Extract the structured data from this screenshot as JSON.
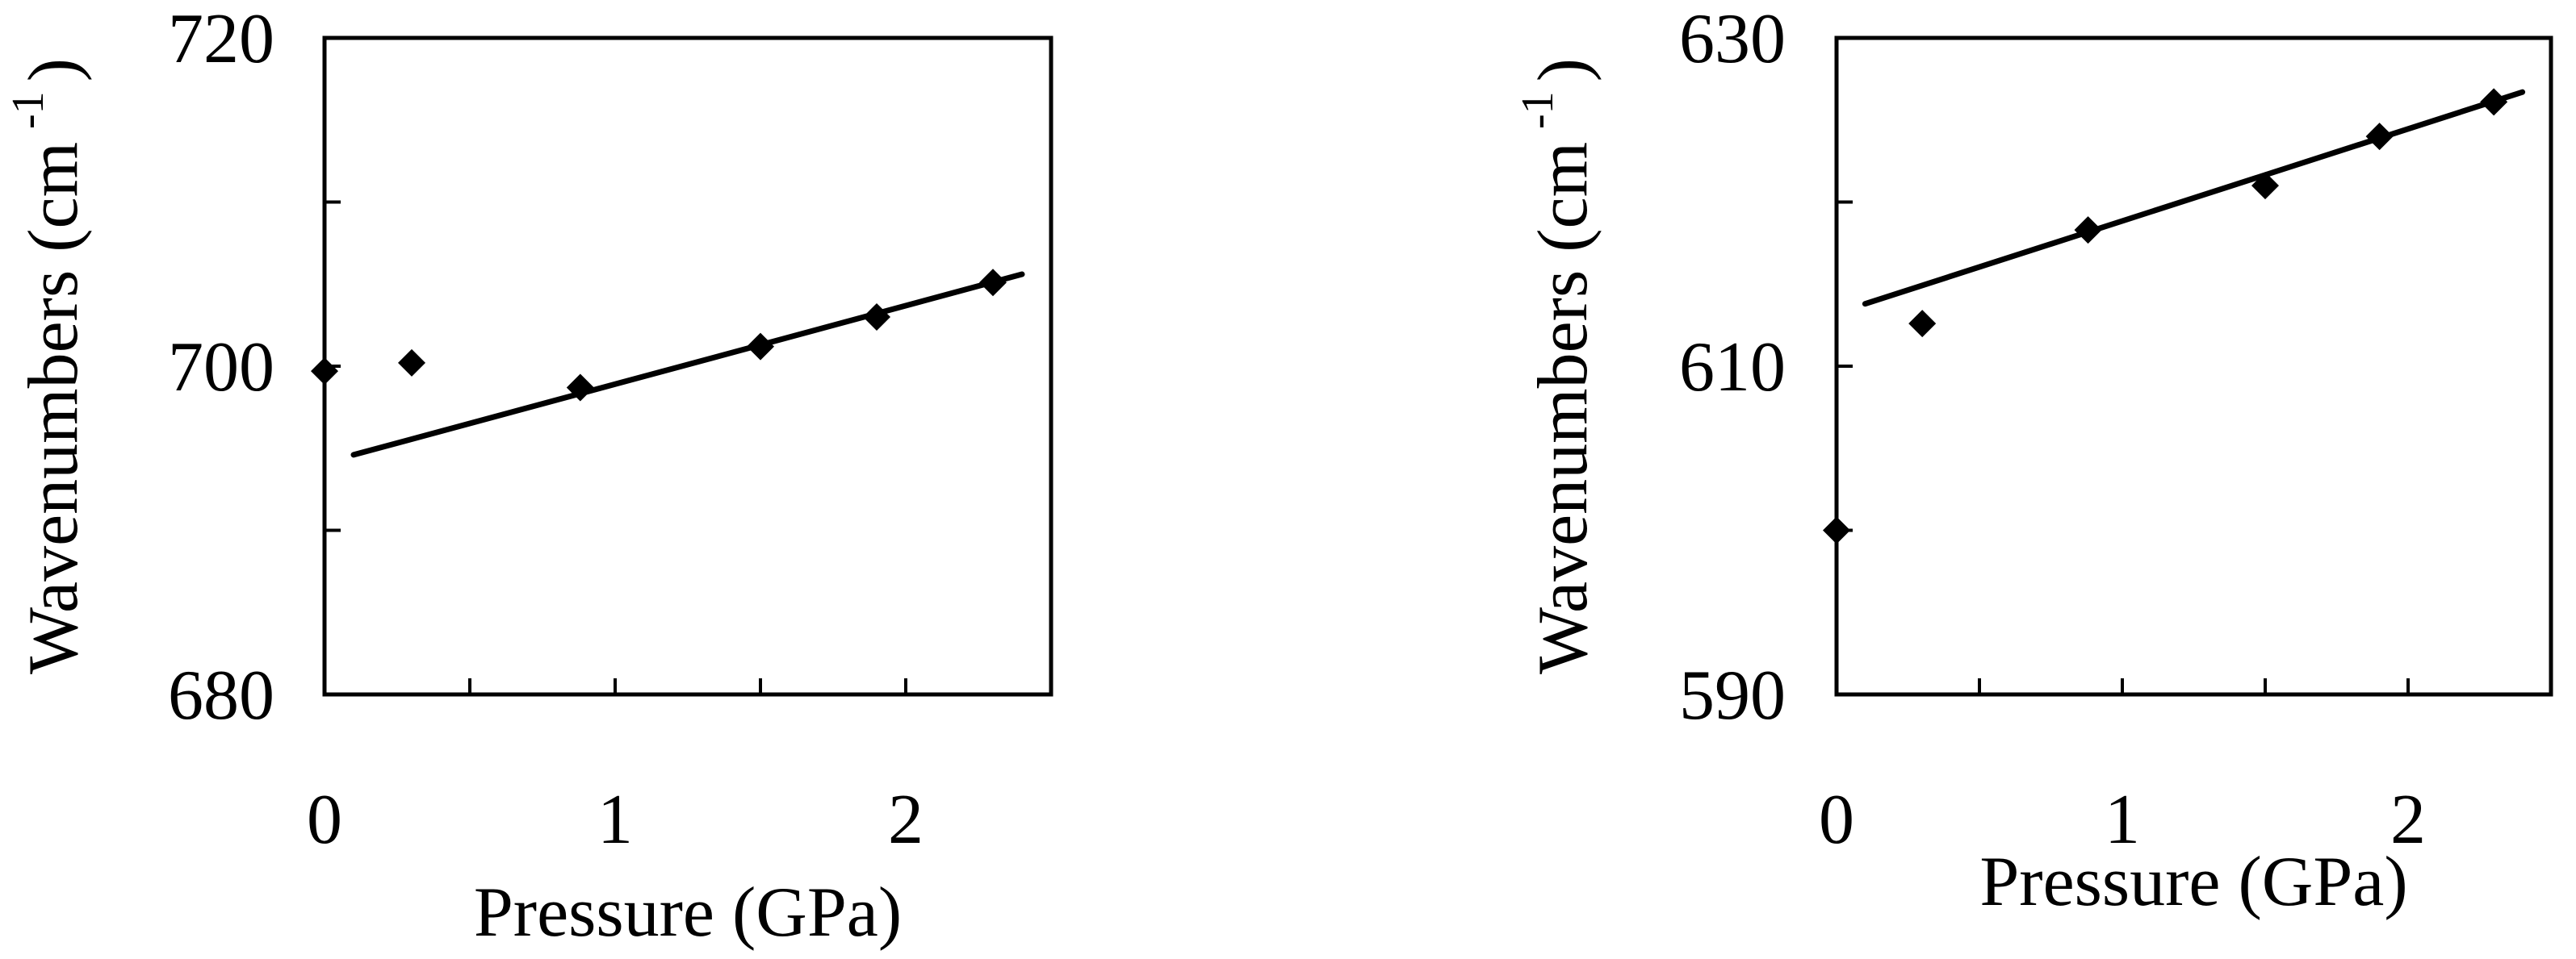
{
  "chart_data": [
    {
      "type": "scatter",
      "xlabel": "Pressure (GPa)",
      "ylabel": "Wavenumbers (cm",
      "ylabel_superscript": "-1",
      "ylabel_close": ")",
      "xlim": [
        0,
        2.5
      ],
      "ylim": [
        680,
        720
      ],
      "x_ticks": [
        0,
        0.5,
        1,
        1.5,
        2,
        2.5
      ],
      "x_tick_labels": [
        "0",
        "",
        "1",
        "",
        "2",
        ""
      ],
      "y_ticks": [
        680,
        690,
        700,
        710,
        720
      ],
      "y_tick_labels": [
        "680",
        "",
        "700",
        "",
        "720"
      ],
      "grid": false,
      "series": [
        {
          "marker": "diamond",
          "x": [
            0,
            0.3,
            0.88,
            1.5,
            1.9,
            2.3
          ],
          "y": [
            699.7,
            700.2,
            698.7,
            701.2,
            703.0,
            705.1
          ]
        }
      ],
      "fit_line": {
        "x": [
          0.1,
          2.4
        ],
        "y": [
          694.6,
          705.6
        ]
      }
    },
    {
      "type": "scatter",
      "xlabel": "Pressure (GPa)",
      "ylabel": "Wavenumbers (cm",
      "ylabel_superscript": "-1",
      "ylabel_close": ")",
      "xlim": [
        0,
        2.5
      ],
      "ylim": [
        590,
        630
      ],
      "x_ticks": [
        0,
        0.5,
        1,
        1.5,
        2,
        2.5
      ],
      "x_tick_labels": [
        "0",
        "",
        "1",
        "",
        "2",
        ""
      ],
      "y_ticks": [
        590,
        600,
        610,
        620,
        630
      ],
      "y_tick_labels": [
        "590",
        "",
        "610",
        "",
        "630"
      ],
      "grid": false,
      "series": [
        {
          "marker": "diamond",
          "x": [
            0,
            0.3,
            0.88,
            1.5,
            1.9,
            2.3
          ],
          "y": [
            600,
            612.6,
            618.3,
            621.0,
            624.0,
            626.1
          ]
        }
      ],
      "fit_line": {
        "x": [
          0.1,
          2.4
        ],
        "y": [
          613.8,
          626.7
        ]
      }
    }
  ]
}
